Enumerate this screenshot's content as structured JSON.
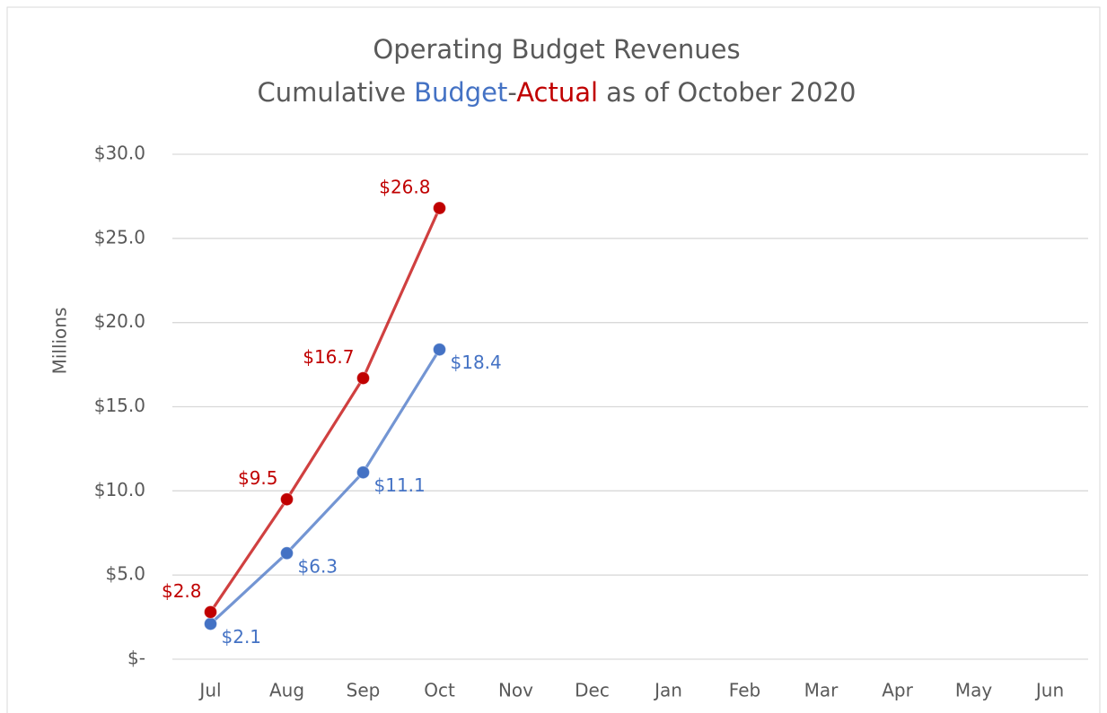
{
  "chart_data": {
    "type": "line",
    "title": "Operating Budget Revenues",
    "subtitle": {
      "prefix": "Cumulative",
      "joiner": "-",
      "suffix": "as of October 2020"
    },
    "y_label": "Millions",
    "categories": [
      "Jul",
      "Aug",
      "Sep",
      "Oct",
      "Nov",
      "Dec",
      "Jan",
      "Feb",
      "Mar",
      "Apr",
      "May",
      "Jun"
    ],
    "series": [
      {
        "name": "Budget",
        "color": "#4472c4",
        "values": [
          2.1,
          6.3,
          11.1,
          18.4,
          null,
          null,
          null,
          null,
          null,
          null,
          null,
          null
        ],
        "value_labels": [
          "$2.1",
          "$6.3",
          "$11.1",
          "$18.4",
          null,
          null,
          null,
          null,
          null,
          null,
          null,
          null
        ]
      },
      {
        "name": "Actual",
        "color": "#c00000",
        "values": [
          2.8,
          9.5,
          16.7,
          26.8,
          null,
          null,
          null,
          null,
          null,
          null,
          null,
          null
        ],
        "value_labels": [
          "$2.8",
          "$9.5",
          "$16.7",
          "$26.8",
          null,
          null,
          null,
          null,
          null,
          null,
          null,
          null
        ]
      }
    ],
    "ylim": [
      0,
      30
    ],
    "yticks": [
      {
        "value": 0,
        "label": "$-"
      },
      {
        "value": 5,
        "label": "$5.0"
      },
      {
        "value": 10,
        "label": "$10.0"
      },
      {
        "value": 15,
        "label": "$15.0"
      },
      {
        "value": 20,
        "label": "$20.0"
      },
      {
        "value": 25,
        "label": "$25.0"
      },
      {
        "value": 30,
        "label": "$30.0"
      }
    ],
    "grid": true
  }
}
